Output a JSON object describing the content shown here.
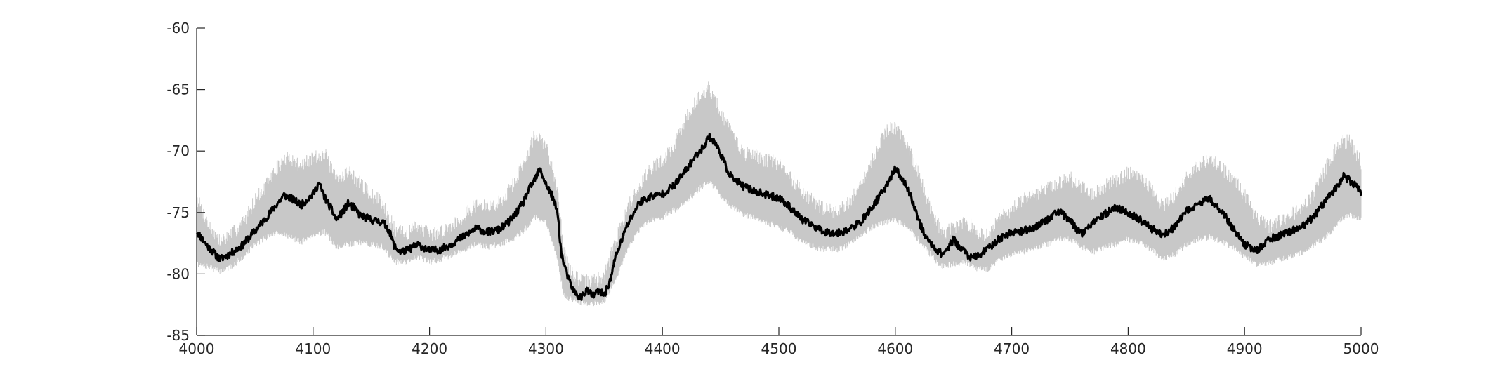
{
  "chart_data": {
    "type": "line",
    "title": "",
    "xlabel": "",
    "ylabel": "",
    "xlim": [
      4000,
      5000
    ],
    "ylim": [
      -85,
      -60
    ],
    "grid": false,
    "x_ticks": [
      4000,
      4100,
      4200,
      4300,
      4400,
      4500,
      4600,
      4700,
      4800,
      4900,
      5000
    ],
    "y_ticks": [
      -60,
      -65,
      -70,
      -75,
      -80,
      -85
    ],
    "x_tick_labels": [
      "4000",
      "4100",
      "4200",
      "4300",
      "4400",
      "4500",
      "4600",
      "4700",
      "4800",
      "4900",
      "5000"
    ],
    "y_tick_labels": [
      "-60",
      "-65",
      "-70",
      "-75",
      "-80",
      "-85"
    ],
    "colors": {
      "mean_line": "#000000",
      "band": "#c8c8c8",
      "axis": "#262626"
    },
    "series": [
      {
        "style": "mean-line",
        "x": [
          4000,
          4005,
          4010,
          4015,
          4020,
          4030,
          4040,
          4050,
          4060,
          4070,
          4075,
          4080,
          4090,
          4100,
          4105,
          4110,
          4115,
          4120,
          4125,
          4130,
          4135,
          4140,
          4150,
          4160,
          4165,
          4170,
          4175,
          4180,
          4190,
          4200,
          4210,
          4220,
          4230,
          4240,
          4250,
          4260,
          4270,
          4280,
          4285,
          4290,
          4295,
          4300,
          4305,
          4310,
          4313,
          4316,
          4318,
          4320,
          4325,
          4330,
          4335,
          4340,
          4345,
          4350,
          4355,
          4360,
          4370,
          4380,
          4390,
          4400,
          4410,
          4420,
          4425,
          4430,
          4435,
          4440,
          4445,
          4450,
          4455,
          4460,
          4470,
          4480,
          4490,
          4500,
          4510,
          4520,
          4530,
          4540,
          4550,
          4560,
          4570,
          4580,
          4585,
          4590,
          4595,
          4600,
          4605,
          4610,
          4615,
          4620,
          4625,
          4630,
          4640,
          4645,
          4650,
          4655,
          4660,
          4665,
          4670,
          4680,
          4690,
          4700,
          4710,
          4720,
          4730,
          4740,
          4750,
          4755,
          4760,
          4770,
          4780,
          4790,
          4800,
          4810,
          4820,
          4830,
          4840,
          4850,
          4860,
          4870,
          4880,
          4890,
          4900,
          4910,
          4915,
          4920,
          4930,
          4940,
          4950,
          4960,
          4970,
          4980,
          4985,
          4990,
          4995,
          5000
        ],
        "y": [
          -76.5,
          -77.2,
          -77.8,
          -78.3,
          -78.8,
          -78.3,
          -77.6,
          -76.5,
          -75.4,
          -74.2,
          -73.6,
          -73.8,
          -74.4,
          -73.5,
          -72.6,
          -73.8,
          -74.6,
          -75.6,
          -75.0,
          -74.3,
          -74.6,
          -75.2,
          -75.6,
          -75.8,
          -76.4,
          -77.8,
          -78.2,
          -78.1,
          -77.6,
          -78.1,
          -78.0,
          -77.5,
          -76.9,
          -76.3,
          -76.6,
          -76.4,
          -75.6,
          -74.3,
          -73.2,
          -72.4,
          -71.5,
          -72.7,
          -73.6,
          -75.0,
          -78.2,
          -79.4,
          -80.0,
          -80.6,
          -81.6,
          -81.9,
          -81.3,
          -81.8,
          -81.4,
          -81.7,
          -80.6,
          -78.5,
          -76.0,
          -74.2,
          -73.7,
          -73.5,
          -72.8,
          -71.6,
          -70.9,
          -70.2,
          -69.7,
          -68.8,
          -69.3,
          -70.2,
          -71.4,
          -72.2,
          -72.9,
          -73.3,
          -73.6,
          -73.8,
          -74.6,
          -75.6,
          -76.1,
          -76.6,
          -76.7,
          -76.4,
          -75.8,
          -74.6,
          -73.9,
          -73.2,
          -72.3,
          -71.4,
          -72.2,
          -72.9,
          -74.1,
          -75.6,
          -76.8,
          -77.5,
          -78.4,
          -77.9,
          -77.2,
          -77.8,
          -78.2,
          -78.7,
          -78.6,
          -77.9,
          -77.1,
          -76.6,
          -76.5,
          -76.2,
          -75.6,
          -74.9,
          -75.6,
          -76.3,
          -76.7,
          -75.9,
          -75.1,
          -74.6,
          -75.0,
          -75.6,
          -76.3,
          -76.8,
          -76.2,
          -74.9,
          -74.3,
          -73.9,
          -74.8,
          -76.3,
          -77.6,
          -78.1,
          -77.8,
          -77.2,
          -76.9,
          -76.5,
          -76.1,
          -75.3,
          -74.0,
          -72.8,
          -72.0,
          -72.4,
          -72.8,
          -73.4
        ]
      },
      {
        "style": "band-upper",
        "x": [
          4000,
          4010,
          4020,
          4030,
          4040,
          4050,
          4060,
          4070,
          4080,
          4090,
          4100,
          4110,
          4120,
          4130,
          4140,
          4150,
          4160,
          4170,
          4180,
          4190,
          4200,
          4210,
          4220,
          4230,
          4240,
          4250,
          4260,
          4270,
          4280,
          4290,
          4300,
          4310,
          4315,
          4320,
          4330,
          4340,
          4350,
          4360,
          4370,
          4380,
          4390,
          4400,
          4410,
          4420,
          4430,
          4440,
          4450,
          4460,
          4470,
          4480,
          4490,
          4500,
          4510,
          4520,
          4530,
          4540,
          4550,
          4560,
          4570,
          4580,
          4590,
          4600,
          4610,
          4620,
          4630,
          4640,
          4650,
          4660,
          4670,
          4680,
          4690,
          4700,
          4710,
          4720,
          4730,
          4740,
          4750,
          4760,
          4770,
          4780,
          4790,
          4800,
          4810,
          4820,
          4830,
          4840,
          4850,
          4860,
          4870,
          4880,
          4890,
          4900,
          4910,
          4920,
          4930,
          4940,
          4950,
          4960,
          4970,
          4980,
          4990,
          5000
        ],
        "y": [
          -73.8,
          -76.0,
          -77.4,
          -76.8,
          -75.8,
          -74.0,
          -72.8,
          -71.2,
          -70.5,
          -71.2,
          -70.6,
          -70.2,
          -72.4,
          -71.6,
          -72.6,
          -73.6,
          -74.2,
          -76.4,
          -76.8,
          -76.0,
          -76.8,
          -76.6,
          -76.0,
          -75.2,
          -74.4,
          -74.6,
          -74.2,
          -73.0,
          -71.2,
          -68.8,
          -69.6,
          -73.0,
          -78.0,
          -79.6,
          -80.6,
          -80.6,
          -80.2,
          -77.2,
          -74.6,
          -72.8,
          -71.4,
          -70.8,
          -69.6,
          -67.4,
          -65.8,
          -64.8,
          -66.8,
          -68.6,
          -70.2,
          -70.4,
          -70.8,
          -71.0,
          -72.2,
          -73.2,
          -74.2,
          -74.8,
          -75.0,
          -74.2,
          -72.8,
          -70.8,
          -68.6,
          -68.0,
          -69.4,
          -71.8,
          -74.6,
          -76.6,
          -76.4,
          -75.6,
          -76.6,
          -76.8,
          -75.4,
          -74.8,
          -74.0,
          -73.6,
          -73.2,
          -72.6,
          -72.2,
          -73.0,
          -73.6,
          -72.8,
          -72.4,
          -71.8,
          -72.2,
          -73.0,
          -74.6,
          -73.6,
          -72.2,
          -71.2,
          -70.6,
          -71.4,
          -72.2,
          -73.6,
          -75.4,
          -76.2,
          -75.6,
          -75.2,
          -74.6,
          -73.4,
          -71.4,
          -69.4,
          -69.2,
          -71.0
        ]
      },
      {
        "style": "band-lower",
        "x": [
          4000,
          4010,
          4020,
          4030,
          4040,
          4050,
          4060,
          4070,
          4080,
          4090,
          4100,
          4110,
          4120,
          4130,
          4140,
          4150,
          4160,
          4170,
          4180,
          4190,
          4200,
          4210,
          4220,
          4230,
          4240,
          4250,
          4260,
          4270,
          4280,
          4290,
          4300,
          4310,
          4315,
          4320,
          4330,
          4340,
          4350,
          4360,
          4370,
          4380,
          4390,
          4400,
          4410,
          4420,
          4430,
          4440,
          4450,
          4460,
          4470,
          4480,
          4490,
          4500,
          4510,
          4520,
          4530,
          4540,
          4550,
          4560,
          4570,
          4580,
          4590,
          4600,
          4610,
          4620,
          4630,
          4640,
          4650,
          4660,
          4670,
          4680,
          4690,
          4700,
          4710,
          4720,
          4730,
          4740,
          4750,
          4760,
          4770,
          4780,
          4790,
          4800,
          4810,
          4820,
          4830,
          4840,
          4850,
          4860,
          4870,
          4880,
          4890,
          4900,
          4910,
          4920,
          4930,
          4940,
          4950,
          4960,
          4970,
          4980,
          4990,
          5000
        ],
        "y": [
          -79.2,
          -79.4,
          -79.8,
          -79.4,
          -78.6,
          -77.6,
          -77.0,
          -76.6,
          -77.0,
          -77.4,
          -76.8,
          -76.6,
          -77.8,
          -77.6,
          -77.4,
          -77.6,
          -77.8,
          -79.0,
          -79.0,
          -78.6,
          -79.0,
          -78.8,
          -78.4,
          -78.0,
          -77.6,
          -77.8,
          -77.6,
          -77.2,
          -76.6,
          -75.4,
          -75.8,
          -78.8,
          -81.6,
          -82.0,
          -82.4,
          -82.4,
          -82.2,
          -80.4,
          -78.0,
          -76.4,
          -75.6,
          -75.4,
          -74.8,
          -74.2,
          -73.2,
          -72.4,
          -73.6,
          -74.6,
          -75.2,
          -75.4,
          -75.8,
          -76.2,
          -76.6,
          -77.4,
          -77.8,
          -78.0,
          -78.0,
          -77.6,
          -76.8,
          -76.2,
          -75.8,
          -75.6,
          -76.2,
          -77.2,
          -78.4,
          -79.4,
          -79.2,
          -79.0,
          -79.6,
          -79.6,
          -78.8,
          -78.4,
          -78.2,
          -77.8,
          -77.6,
          -77.2,
          -77.2,
          -77.8,
          -78.2,
          -77.8,
          -77.6,
          -77.2,
          -77.4,
          -78.0,
          -78.8,
          -78.4,
          -77.6,
          -77.2,
          -77.0,
          -77.4,
          -77.8,
          -78.6,
          -79.2,
          -79.2,
          -78.8,
          -78.6,
          -78.2,
          -77.6,
          -77.0,
          -75.8,
          -75.2,
          -75.6
        ]
      }
    ]
  }
}
